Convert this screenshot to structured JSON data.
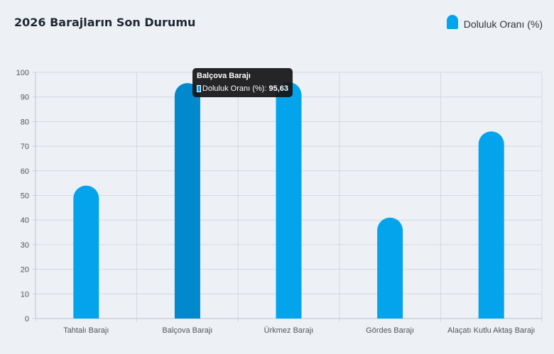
{
  "title": "2026 Barajların Son Durumu",
  "legend": {
    "label": "Doluluk Oranı (%)",
    "color": "#03a4ec"
  },
  "colors": {
    "bar": "#03a4ec",
    "bar_hover": "#0288cc",
    "grid": "#d4d8de"
  },
  "tooltip": {
    "title": "Balçova Barajı",
    "series_label": "Doluluk Oranı (%):",
    "value": "95,63"
  },
  "chart_data": {
    "type": "bar",
    "title": "2026 Barajların Son Durumu",
    "categories": [
      "Tahtalı Barajı",
      "Balçova Barajı",
      "Ürkmez Barajı",
      "Gördes Barajı",
      "Alaçatı Kutlu Aktaş Barajı"
    ],
    "series": [
      {
        "name": "Doluluk Oranı (%)",
        "values": [
          54,
          95.63,
          96,
          41,
          76
        ]
      }
    ],
    "yticks": [
      0,
      10,
      20,
      30,
      40,
      50,
      60,
      70,
      80,
      90,
      100
    ],
    "ylim": [
      0,
      100
    ],
    "xlabel": "",
    "ylabel": "",
    "grid": true,
    "legend_position": "top-right",
    "highlighted_index": 1
  }
}
